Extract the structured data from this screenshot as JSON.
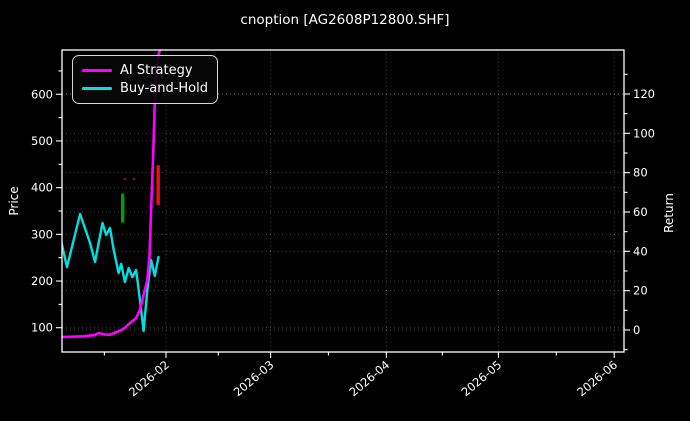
{
  "title": "cnoption [AG2608P12800.SHF]",
  "colors": {
    "background": "#000000",
    "foreground": "#ffffff",
    "grid": "rgba(255,255,255,0.25)",
    "ai_strategy": "#ff00ff",
    "buy_and_hold": "#00e0e0",
    "up_bar": "#00a000",
    "down_bar": "#ee1111",
    "faint_bar": "#6b1515"
  },
  "legend": {
    "items": [
      {
        "label": "AI Strategy",
        "color": "#ff00ff"
      },
      {
        "label": "Buy-and-Hold",
        "color": "#00e0e0"
      }
    ]
  },
  "axes": {
    "bottom": {
      "ticks": [
        {
          "day": 32,
          "label": "2026-02"
        },
        {
          "day": 60,
          "label": "2026-03"
        },
        {
          "day": 91,
          "label": "2026-04"
        },
        {
          "day": 121,
          "label": "2026-05"
        },
        {
          "day": 152,
          "label": "2026-06"
        }
      ],
      "minor_tick_days": [
        15.5,
        46,
        75.5,
        106,
        136.5
      ]
    }
  },
  "chart_data": {
    "type": "line",
    "title": "cnoption [AG2608P12800.SHF]",
    "background": "#000000",
    "grid": true,
    "legend_position": "upper-left",
    "x_unit": "day number of 2026 (Jan 1 = 1); axis shows monthly ticks 2026-02 .. 2026-06",
    "x_range_days": [
      3,
      154.6
    ],
    "left_axis": {
      "label": "Price",
      "ticks": [
        100,
        200,
        300,
        400,
        500,
        600
      ],
      "minor_ticks": [
        150,
        250,
        350,
        450,
        550,
        650
      ],
      "range": [
        48,
        695
      ]
    },
    "right_axis": {
      "label": "Return",
      "ticks": [
        0,
        20,
        40,
        60,
        80,
        100,
        120
      ],
      "minor_ticks": [
        -10,
        10,
        30,
        50,
        70,
        90,
        110,
        130
      ],
      "range": [
        -11,
        142
      ]
    },
    "series": [
      {
        "name": "AI Strategy",
        "axis": "right",
        "color": "#ff00ff",
        "points": [
          [
            4,
            -3.6
          ],
          [
            7,
            -3.4
          ],
          [
            10,
            -3.2
          ],
          [
            13,
            -2.5
          ],
          [
            14,
            -1.5
          ],
          [
            15.5,
            -2.3
          ],
          [
            17,
            -2.4
          ],
          [
            18,
            -1.6
          ],
          [
            19.5,
            -0.5
          ],
          [
            21,
            1.0
          ],
          [
            22,
            3.0
          ],
          [
            24,
            6.1
          ],
          [
            25,
            10.2
          ],
          [
            26,
            17.8
          ],
          [
            27,
            25.4
          ],
          [
            27.6,
            38
          ],
          [
            28,
            61
          ],
          [
            28.6,
            91
          ],
          [
            29,
            117
          ],
          [
            29.5,
            132
          ],
          [
            30,
            140
          ],
          [
            31,
            146
          ]
        ]
      },
      {
        "name": "Buy-and-Hold",
        "axis": "right",
        "color": "#00e0e0",
        "points": [
          [
            4,
            44.7
          ],
          [
            5.5,
            32
          ],
          [
            9,
            59
          ],
          [
            11.7,
            44
          ],
          [
            13,
            34.6
          ],
          [
            15,
            54.4
          ],
          [
            16,
            48.3
          ],
          [
            17,
            51.9
          ],
          [
            18,
            40.7
          ],
          [
            19.3,
            29
          ],
          [
            20,
            33.6
          ],
          [
            21,
            24.4
          ],
          [
            22,
            31.5
          ],
          [
            23,
            26.9
          ],
          [
            24,
            30.5
          ],
          [
            25,
            15.3
          ],
          [
            26,
            -0.5
          ],
          [
            27,
            20.3
          ],
          [
            28,
            35.6
          ],
          [
            29,
            27.5
          ],
          [
            30,
            37.1
          ]
        ]
      }
    ],
    "price_bars": [
      {
        "name": "up-bar",
        "day": 20.4,
        "low": 325,
        "high": 387,
        "color": "#00a000"
      },
      {
        "name": "faint-bar",
        "day": 21.0,
        "low": 416,
        "high": 421,
        "color": "#6b1515"
      },
      {
        "name": "faint-bar",
        "day": 23.4,
        "low": 416,
        "high": 421,
        "color": "#6b1515"
      },
      {
        "name": "down-bar",
        "day": 29.9,
        "low": 363,
        "high": 448,
        "color": "#ee1111"
      }
    ]
  }
}
